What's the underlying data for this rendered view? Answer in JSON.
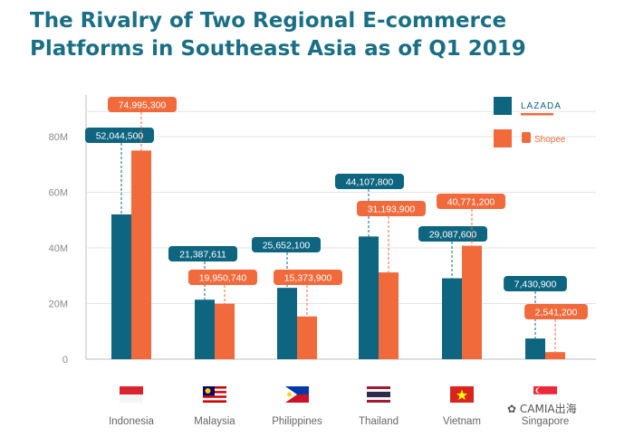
{
  "chart_data": {
    "type": "bar",
    "title": "The Rivalry of Two Regional E-commerce Platforms in Southeast Asia as of Q1 2019",
    "categories": [
      "Indonesia",
      "Malaysia",
      "Philippines",
      "Thailand",
      "Vietnam",
      "Singapore"
    ],
    "series": [
      {
        "name": "LAZADA",
        "color": "#0e6580",
        "values": [
          52044500,
          21387611,
          25652100,
          44107800,
          29087600,
          7430900
        ],
        "labels": [
          "52,044,500",
          "21,387,611",
          "25,652,100",
          "44,107,800",
          "29,087,600",
          "7,430,900"
        ]
      },
      {
        "name": "Shopee",
        "color": "#f06a3b",
        "values": [
          74995300,
          19950740,
          15373900,
          31193900,
          40771200,
          2541200
        ],
        "labels": [
          "74,995,300",
          "19,950,740",
          "15,373,900",
          "31,193,900",
          "40,771,200",
          "2,541,200"
        ]
      }
    ],
    "yticks": [
      "0",
      "20M",
      "40M",
      "60M",
      "80M"
    ],
    "ylim": [
      0,
      90000000
    ],
    "legend": "top-right",
    "grid": true
  },
  "flags": [
    "indonesia-flag-icon",
    "malaysia-flag-icon",
    "philippines-flag-icon",
    "thailand-flag-icon",
    "vietnam-flag-icon",
    "singapore-flag-icon"
  ],
  "watermark": "CAMIA出海"
}
